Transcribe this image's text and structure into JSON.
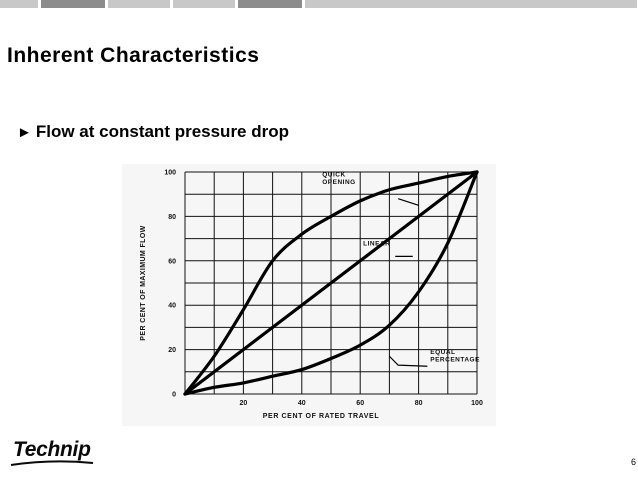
{
  "slide": {
    "title": "Inherent Characteristics",
    "bullet_icon": "right-triangle-bullet",
    "bullet": "Flow at constant pressure drop",
    "logo": "Technip",
    "page_number": "6"
  },
  "chart_data": {
    "type": "line",
    "title": "",
    "xlabel": "PER CENT OF RATED TRAVEL",
    "ylabel": "PER CENT OF MAXIMUM FLOW",
    "xlim": [
      0,
      100
    ],
    "ylim": [
      0,
      100
    ],
    "grid": true,
    "x_ticks": [
      "0",
      "20",
      "40",
      "60",
      "80",
      "100"
    ],
    "y_ticks": [
      "0",
      "20",
      "40",
      "60",
      "80",
      "100"
    ],
    "series": [
      {
        "name": "QUICK OPENING",
        "x": [
          0,
          10,
          20,
          30,
          40,
          50,
          60,
          70,
          80,
          90,
          100
        ],
        "y": [
          0,
          17,
          38,
          60,
          72,
          80,
          87,
          92,
          95,
          98,
          100
        ]
      },
      {
        "name": "LINEAR",
        "x": [
          0,
          100
        ],
        "y": [
          0,
          100
        ]
      },
      {
        "name": "EQUAL PERCENTAGE",
        "x": [
          0,
          10,
          20,
          30,
          40,
          50,
          60,
          70,
          80,
          90,
          100
        ],
        "y": [
          0,
          3,
          5,
          8,
          11,
          16,
          22,
          31,
          46,
          68,
          100
        ]
      }
    ],
    "annotations": [
      {
        "lines": [
          "QUICK",
          "OPENING"
        ],
        "series": "QUICK OPENING"
      },
      {
        "lines": [
          "LINEAR"
        ],
        "series": "LINEAR"
      },
      {
        "lines": [
          "EQUAL",
          "PERCENTAGE"
        ],
        "series": "EQUAL PERCENTAGE"
      }
    ]
  }
}
